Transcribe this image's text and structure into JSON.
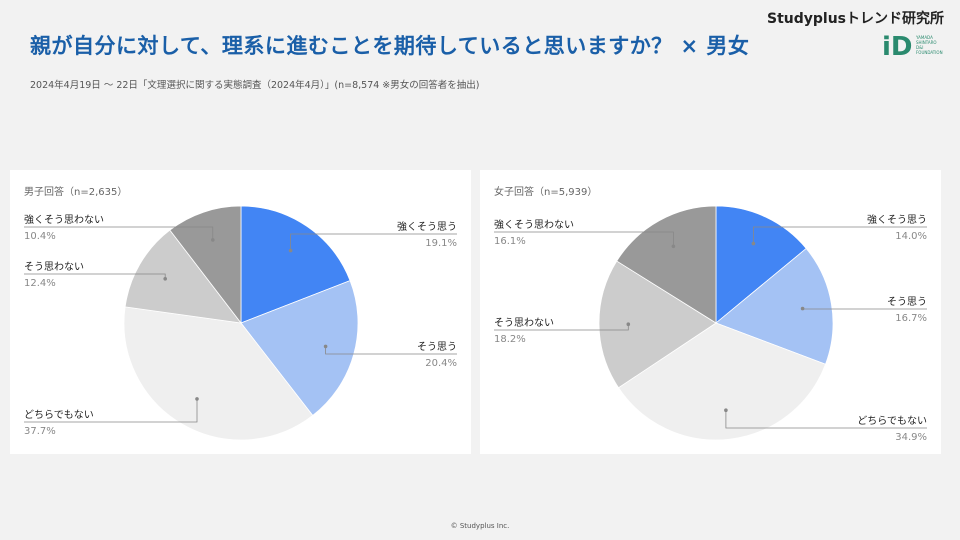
{
  "header": {
    "title": "親が自分に対して、理系に進むことを期待していると思いますか？ × 男女",
    "subtitle": "2024年4月19日 〜 22日「文理選択に関する実態調査（2024年4月）」(n=8,574 ※男女の回答者を抽出)",
    "brand": "Studyplusトレンド研究所",
    "logo_letters": "iD",
    "logo_text_lines": [
      "YAMADA",
      "SHINTARO",
      "D&I",
      "FOUNDATION"
    ]
  },
  "footer": {
    "copyright": "© Studyplus Inc."
  },
  "colors": {
    "strongly_agree": "#4285f4",
    "agree": "#a4c2f4",
    "neutral": "#efefef",
    "disagree": "#cccccc",
    "strongly_disagree": "#999999",
    "title": "#1a5fa8",
    "logo": "#2a8a6e"
  },
  "chart_data": [
    {
      "type": "pie",
      "title": "男子回答（n=2,635）",
      "slices": [
        {
          "label": "強くそう思う",
          "value": 19.1,
          "display": "19.1%"
        },
        {
          "label": "そう思う",
          "value": 20.4,
          "display": "20.4%"
        },
        {
          "label": "どちらでもない",
          "value": 37.7,
          "display": "37.7%"
        },
        {
          "label": "そう思わない",
          "value": 12.4,
          "display": "12.4%"
        },
        {
          "label": "強くそう思わない",
          "value": 10.4,
          "display": "10.4%"
        }
      ]
    },
    {
      "type": "pie",
      "title": "女子回答（n=5,939）",
      "slices": [
        {
          "label": "強くそう思う",
          "value": 14.0,
          "display": "14.0%"
        },
        {
          "label": "そう思う",
          "value": 16.7,
          "display": "16.7%"
        },
        {
          "label": "どちらでもない",
          "value": 34.9,
          "display": "34.9%"
        },
        {
          "label": "そう思わない",
          "value": 18.2,
          "display": "18.2%"
        },
        {
          "label": "強くそう思わない",
          "value": 16.1,
          "display": "16.1%"
        }
      ]
    }
  ]
}
